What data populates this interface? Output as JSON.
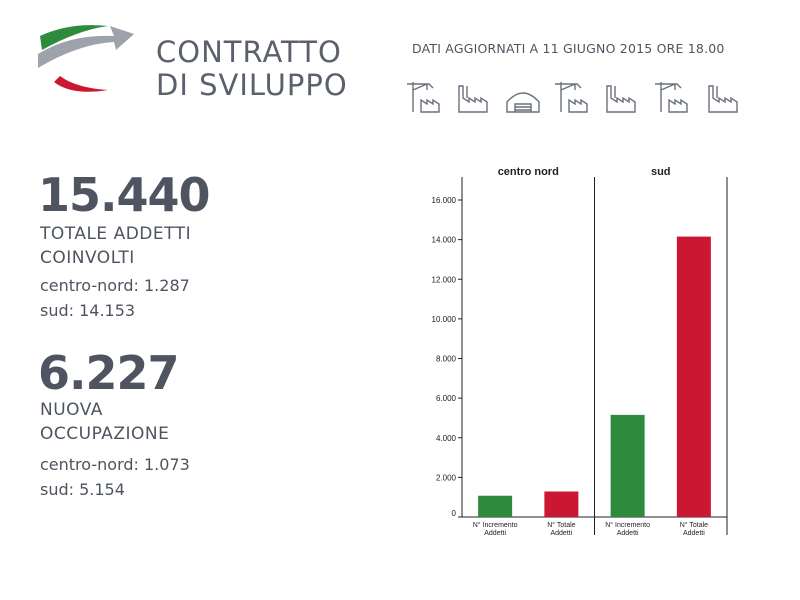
{
  "header": {
    "brand_line1": "CONTRATTO",
    "brand_line2": "DI SVILUPPO",
    "updated": "DATI AGGIORNATI A 11 GIUGNO 2015 ORE 18.00",
    "icons": [
      "crane-factory-icon",
      "factory-icon",
      "hangar-icon",
      "crane-factory-icon",
      "factory-icon",
      "crane-factory-icon",
      "factory-icon"
    ]
  },
  "stats": {
    "total_value": "15.440",
    "total_label_1": "TOTALE ADDETTI",
    "total_label_2": "COINVOLTI",
    "total_cn": "centro-nord: 1.287",
    "total_sud": "sud: 14.153",
    "new_value": "6.227",
    "new_label_1": "NUOVA",
    "new_label_2": "OCCUPAZIONE",
    "new_cn": "centro-nord: 1.073",
    "new_sud": "sud: 5.154"
  },
  "colors": {
    "green": "#2e8b3e",
    "red": "#cc1733",
    "text": "#4e5460"
  },
  "chart_data": {
    "type": "bar",
    "groups": [
      "centro nord",
      "sud"
    ],
    "categories": [
      "N° Incremento Addetti",
      "N° Totale Addetti"
    ],
    "category_lines": [
      [
        "N° Incremento",
        "Addetti"
      ],
      [
        "N° Totale",
        "Addetti"
      ]
    ],
    "values": [
      [
        1073,
        1287
      ],
      [
        5154,
        14153
      ]
    ],
    "ylim": [
      0,
      16000
    ],
    "yticks": [
      0,
      2000,
      4000,
      6000,
      8000,
      10000,
      12000,
      14000,
      16000
    ],
    "ytick_labels": [
      "0",
      "2.000",
      "4.000",
      "6.000",
      "8.000",
      "10.000",
      "12.000",
      "14.000",
      "16.000"
    ]
  }
}
